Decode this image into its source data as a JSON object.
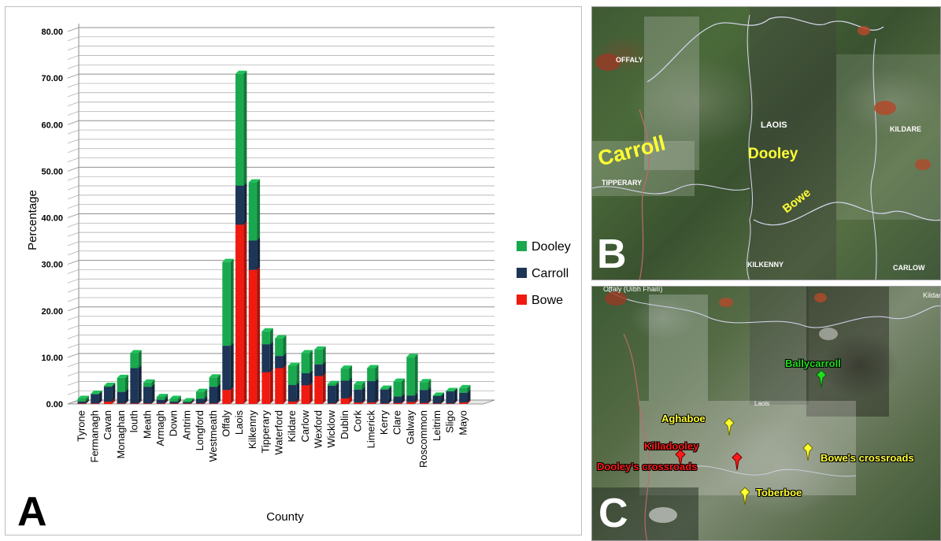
{
  "colors": {
    "dooley": "#1aa84f",
    "carroll": "#1d3556",
    "bowe": "#f01a10",
    "grid": "#a6a6a6"
  },
  "panel_labels": {
    "a": "A",
    "b": "B",
    "c": "C"
  },
  "chart_data": {
    "type": "bar",
    "stacked": true,
    "xlabel": "County",
    "ylabel": "Percentage",
    "ylim": [
      0,
      80
    ],
    "yticks": [
      "0.00",
      "10.00",
      "20.00",
      "30.00",
      "40.00",
      "50.00",
      "60.00",
      "70.00",
      "80.00"
    ],
    "grid": true,
    "legend": "right",
    "categories": [
      "Tyrone",
      "Fermanagh",
      "Cavan",
      "Monaghan",
      "louth",
      "Meath",
      "Armagh",
      "Down",
      "Antrim",
      "Longford",
      "Westmeath",
      "Offaly",
      "Laois",
      "Kilkenny",
      "Tipperary",
      "Waterford",
      "Kildare",
      "Carlow",
      "Wexford",
      "Wicklow",
      "Dublin",
      "Cork",
      "Limerick",
      "Kerry",
      "Clare",
      "Galway",
      "Roscommon",
      "Leitrim",
      "Sligo",
      "Mayo"
    ],
    "series": [
      {
        "name": "Bowe",
        "color": "#f01a10",
        "values": [
          0.1,
          0.1,
          0.5,
          0.1,
          0.1,
          0.1,
          0.1,
          0.1,
          0.1,
          0.1,
          0.1,
          3.0,
          38.5,
          28.8,
          6.8,
          7.7,
          0.5,
          4.0,
          6.0,
          0.1,
          1.2,
          0.3,
          0.3,
          0.1,
          0.2,
          0.4,
          0.2,
          0.1,
          0.1,
          0.3
        ]
      },
      {
        "name": "Carroll",
        "color": "#1d3556",
        "values": [
          0.4,
          2.0,
          3.2,
          2.5,
          7.6,
          3.6,
          0.8,
          0.4,
          0.3,
          1.0,
          3.6,
          9.5,
          8.4,
          6.3,
          6.0,
          2.6,
          3.6,
          2.6,
          2.5,
          3.8,
          3.8,
          2.8,
          4.6,
          3.0,
          1.4,
          1.4,
          2.8,
          1.6,
          2.6,
          2.1
        ]
      },
      {
        "name": "Dooley",
        "color": "#1aa84f",
        "values": [
          0.6,
          0.1,
          0.2,
          3.0,
          3.2,
          0.9,
          0.6,
          0.6,
          0.2,
          1.5,
          2.0,
          18.0,
          24.0,
          12.5,
          2.8,
          3.8,
          4.1,
          4.3,
          3.2,
          0.4,
          2.6,
          1.1,
          2.8,
          0.2,
          3.2,
          8.3,
          1.7,
          0.1,
          0.1,
          1.0
        ]
      }
    ]
  },
  "panel_b": {
    "counties": [
      {
        "key": "offaly",
        "text": "OFFALY"
      },
      {
        "key": "laois",
        "text": "LAOIS"
      },
      {
        "key": "kildare",
        "text": "KILDARE"
      },
      {
        "key": "tipperary",
        "text": "TIPPERARY"
      },
      {
        "key": "kilkenny",
        "text": "KILKENNY"
      },
      {
        "key": "carlow",
        "text": "CARLOW"
      }
    ],
    "surnames": [
      {
        "key": "carroll",
        "text": "Carroll"
      },
      {
        "key": "dooley",
        "text": "Dooley"
      },
      {
        "key": "bowe",
        "text": "Bowe"
      }
    ]
  },
  "panel_c": {
    "map_labels": [
      {
        "key": "offaly",
        "text": "Offaly (Uíbh Fhailí)"
      },
      {
        "key": "kildare",
        "text": "Kildar"
      },
      {
        "key": "laois",
        "text": "Laois"
      }
    ],
    "places": [
      {
        "key": "ballycarroll",
        "text": "Ballycarroll",
        "color": "#22dd22"
      },
      {
        "key": "aghaboe",
        "text": "Aghaboe",
        "color": "#ffff33"
      },
      {
        "key": "killadooley",
        "text": "Killadooley",
        "color": "#ff1a1a"
      },
      {
        "key": "dooleys-crossroads",
        "text": "Dooley's crossroads",
        "color": "#ff1a1a"
      },
      {
        "key": "bowes-crossroads",
        "text": "Bowe's crossroads",
        "color": "#ffff33"
      },
      {
        "key": "toberboe",
        "text": "Toberboe",
        "color": "#ffff33"
      }
    ]
  }
}
